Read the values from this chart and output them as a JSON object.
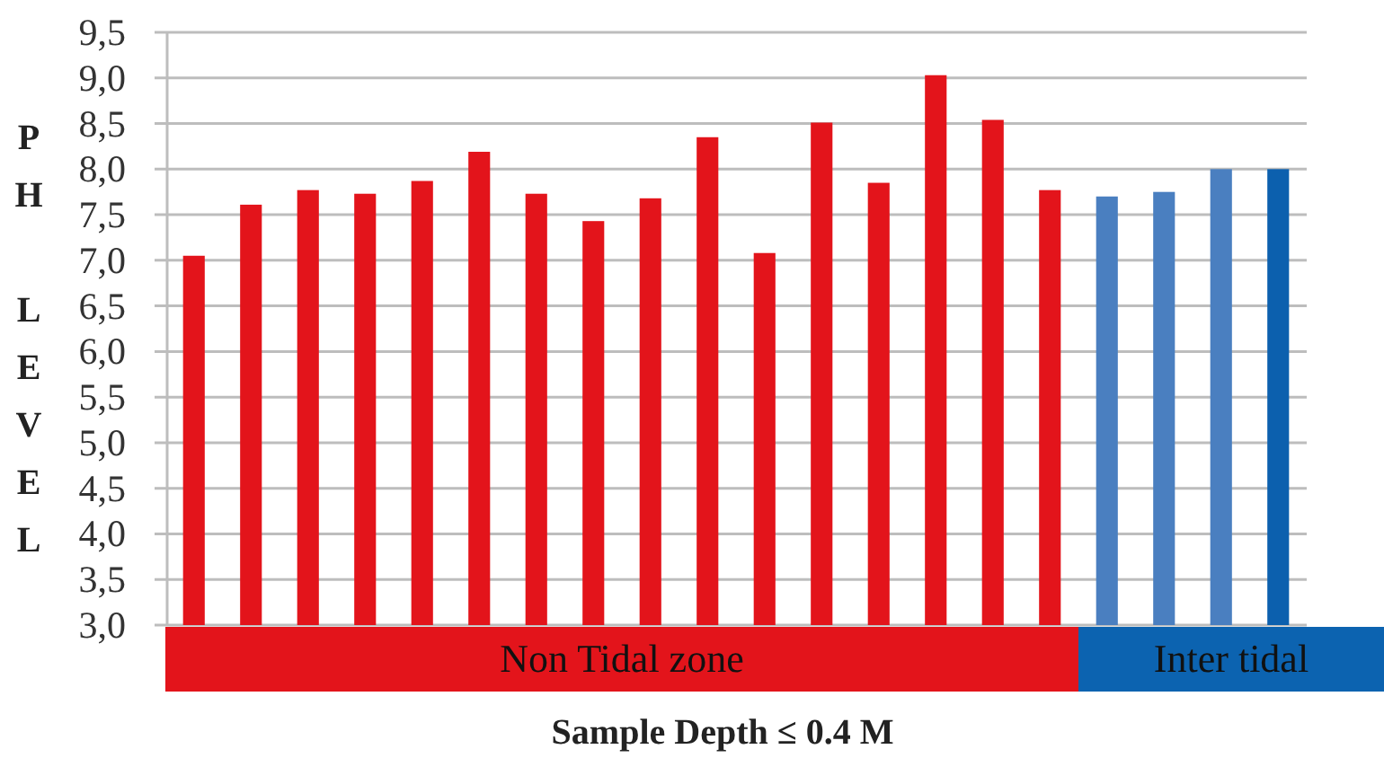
{
  "chart_data": {
    "type": "bar",
    "xlabel": "Sample Depth ≤ 0.4 M",
    "ylabel": "PH LEVEL",
    "categories": [
      null,
      null,
      null,
      null,
      null,
      null,
      null,
      null,
      null,
      null,
      null,
      null,
      null,
      null,
      null,
      null,
      null,
      null,
      null,
      null
    ],
    "series": [
      {
        "name": "Non Tidal zone",
        "color": "#e3141b",
        "values": [
          7.05,
          7.61,
          7.77,
          7.73,
          7.87,
          8.19,
          7.73,
          7.43,
          7.68,
          8.35,
          7.08,
          8.51,
          7.85,
          9.03,
          8.54,
          7.77,
          null,
          null,
          null,
          null
        ]
      },
      {
        "name": "Inter tidal",
        "color": "#0c63b0",
        "colors": [
          null,
          null,
          null,
          null,
          null,
          null,
          null,
          null,
          null,
          null,
          null,
          null,
          null,
          null,
          null,
          null,
          "#4a7fc0",
          "#4a7fc0",
          "#4a7fc0",
          "#0c60ae"
        ],
        "values": [
          null,
          null,
          null,
          null,
          null,
          null,
          null,
          null,
          null,
          null,
          null,
          null,
          null,
          null,
          null,
          null,
          7.7,
          7.75,
          8.0,
          8.0
        ]
      }
    ],
    "ylim": [
      3,
      9.5
    ],
    "yticks": [
      {
        "value": 3,
        "label": "3,0"
      },
      {
        "value": 3.5,
        "label": "3,5"
      },
      {
        "value": 4,
        "label": "4,0"
      },
      {
        "value": 4.5,
        "label": "4,5"
      },
      {
        "value": 5,
        "label": "5,0"
      },
      {
        "value": 5.5,
        "label": "5,5"
      },
      {
        "value": 6,
        "label": "6,0"
      },
      {
        "value": 6.5,
        "label": "6,5"
      },
      {
        "value": 7,
        "label": "7,0"
      },
      {
        "value": 7.5,
        "label": "7,5"
      },
      {
        "value": 8,
        "label": "8,0"
      },
      {
        "value": 8.5,
        "label": "8,5"
      },
      {
        "value": 9,
        "label": "9,0"
      },
      {
        "value": 9.5,
        "label": "9,5"
      }
    ],
    "grid": "y"
  }
}
